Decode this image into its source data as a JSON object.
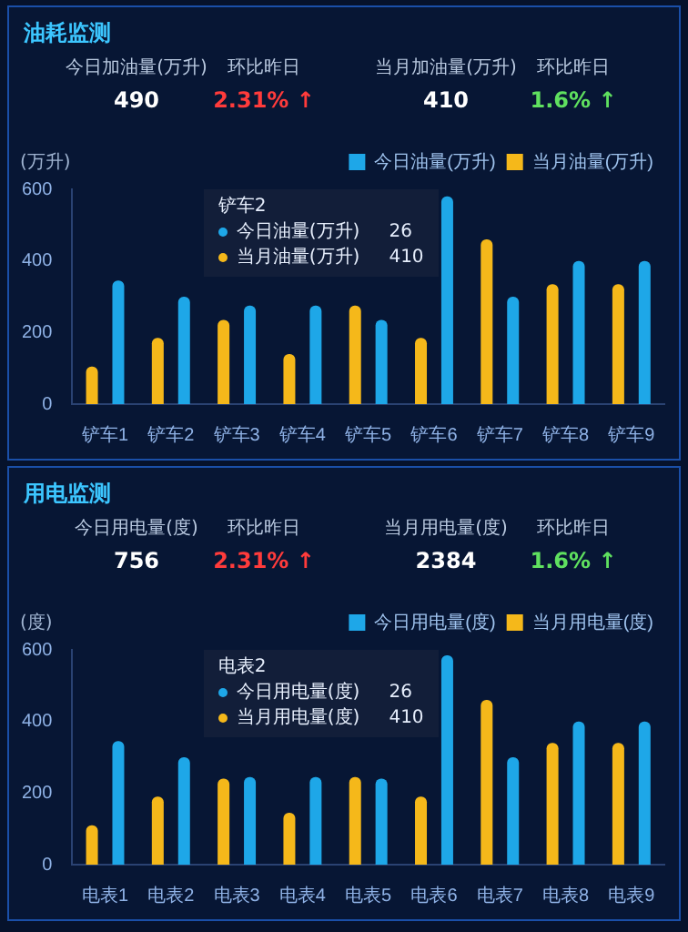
{
  "chart_data": [
    {
      "type": "bar",
      "title": "油耗监测",
      "ylabel": "(万升)",
      "categories": [
        "铲车1",
        "铲车2",
        "铲车3",
        "铲车4",
        "铲车5",
        "铲车6",
        "铲车7",
        "铲车8",
        "铲车9"
      ],
      "series": [
        {
          "name": "当月油量(万升)",
          "color": "#f5b81a",
          "values": [
            105,
            185,
            235,
            140,
            275,
            185,
            460,
            335,
            335
          ]
        },
        {
          "name": "今日油量(万升)",
          "color": "#1ea7e8",
          "values": [
            345,
            300,
            275,
            275,
            235,
            580,
            300,
            400,
            400
          ]
        }
      ],
      "ylim": [
        0,
        600
      ],
      "yticks": [
        0,
        200,
        400,
        600
      ],
      "grid": false,
      "legend": "top right",
      "annotations": [
        "今日加油量(万升)",
        "490",
        "环比昨日",
        "2.31% ↑",
        "当月加油量(万升)",
        "410",
        "环比昨日",
        "1.6% ↑",
        "铲车2",
        "今日油量(万升)",
        "26",
        "当月油量(万升)",
        "410"
      ]
    },
    {
      "type": "bar",
      "title": "用电监测",
      "ylabel": "(度)",
      "categories": [
        "电表1",
        "电表2",
        "电表3",
        "电表4",
        "电表5",
        "电表6",
        "电表7",
        "电表8",
        "电表9"
      ],
      "series": [
        {
          "name": "当月用电量(度)",
          "color": "#f5b81a",
          "values": [
            110,
            190,
            240,
            145,
            245,
            190,
            460,
            340,
            340
          ]
        },
        {
          "name": "今日用电量(度)",
          "color": "#1ea7e8",
          "values": [
            345,
            300,
            245,
            245,
            240,
            585,
            300,
            400,
            400
          ]
        }
      ],
      "ylim": [
        0,
        600
      ],
      "yticks": [
        0,
        200,
        400,
        600
      ],
      "grid": false,
      "legend": "top right",
      "annotations": [
        "今日用电量(度)",
        "756",
        "环比昨日",
        "2.31% ↑",
        "当月用电量(度)",
        "2384",
        "环比昨日",
        "1.6% ↑",
        "电表2",
        "今日用电量(度)",
        "26",
        "当月用电量(度)",
        "410"
      ]
    }
  ]
}
